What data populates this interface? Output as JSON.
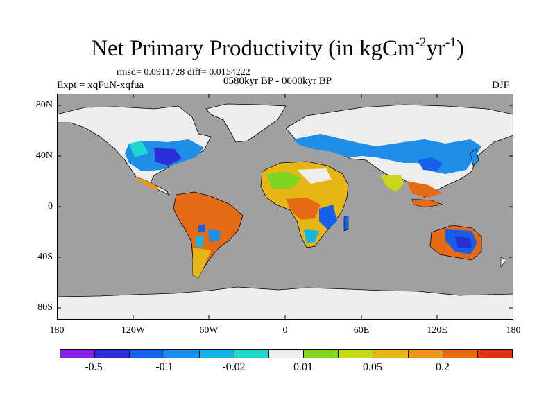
{
  "title_main": "Net Primary Productivity (in kgCm",
  "title_exp1": "-2",
  "title_mid": "yr",
  "title_exp2": "-1",
  "title_end": ")",
  "stats": "rmsd= 0.0911728 diff= 0.0154222",
  "expt": "Expt = xqFuN-xqfua",
  "period": "0580kyr BP - 0000kyr BP",
  "season": "DJF",
  "y_ticks": [
    "80N",
    "40N",
    "0",
    "40S",
    "80S"
  ],
  "x_ticks": [
    "180",
    "120W",
    "60W",
    "0",
    "60E",
    "120E",
    "180"
  ],
  "colorbar": {
    "colors": [
      "#8a1ee6",
      "#2b2fd6",
      "#1560e8",
      "#1e8ee8",
      "#14b6e0",
      "#1ed8d0",
      "#eeeeee",
      "#7ed61e",
      "#c8d814",
      "#e6b614",
      "#e8961e",
      "#e66a14",
      "#e0320e"
    ],
    "labels": [
      "-0.5",
      "-0.1",
      "-0.02",
      "0.01",
      "0.05",
      "0.2"
    ]
  },
  "colors": {
    "ocean": "#a0a0a0",
    "land_neutral": "#eeeeee"
  }
}
